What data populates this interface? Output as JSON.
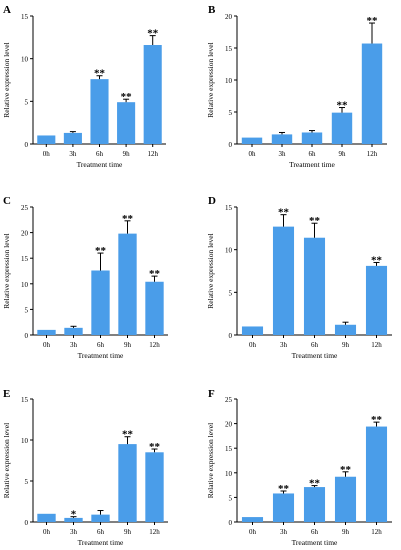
{
  "figure": {
    "bar_color": "#4a9de9",
    "axis_color": "#000000"
  },
  "chart_data": [
    {
      "type": "bar",
      "panel_label": "A",
      "categories": [
        "0h",
        "3h",
        "6h",
        "9h",
        "12h"
      ],
      "values": [
        1.0,
        1.3,
        7.6,
        4.9,
        11.6
      ],
      "errors": [
        0.0,
        0.15,
        0.4,
        0.35,
        1.1
      ],
      "significance": [
        "",
        "",
        "**",
        "**",
        "**"
      ],
      "xlabel": "Treatment time",
      "ylabel": "Relative expression level",
      "ylim": [
        0,
        15
      ],
      "yticks": [
        0,
        5,
        10,
        15
      ]
    },
    {
      "type": "bar",
      "panel_label": "B",
      "categories": [
        "0h",
        "3h",
        "6h",
        "9h",
        "12h"
      ],
      "values": [
        1.0,
        1.5,
        1.8,
        4.9,
        15.7
      ],
      "errors": [
        0.0,
        0.3,
        0.3,
        0.8,
        3.2
      ],
      "significance": [
        "",
        "",
        "",
        "**",
        "**"
      ],
      "xlabel": "Treatment time",
      "ylabel": "Relative expression level",
      "ylim": [
        0,
        20
      ],
      "yticks": [
        0,
        5,
        10,
        15,
        20
      ]
    },
    {
      "type": "bar",
      "panel_label": "C",
      "categories": [
        "0h",
        "3h",
        "6h",
        "9h",
        "12h"
      ],
      "values": [
        1.0,
        1.4,
        12.6,
        19.8,
        10.4
      ],
      "errors": [
        0.0,
        0.3,
        3.4,
        2.5,
        1.1
      ],
      "significance": [
        "",
        "",
        "**",
        "**",
        "**"
      ],
      "xlabel": "Treatment time",
      "ylabel": "Relative expression level",
      "ylim": [
        0,
        25
      ],
      "yticks": [
        0,
        5,
        10,
        15,
        20,
        25
      ]
    },
    {
      "type": "bar",
      "panel_label": "D",
      "categories": [
        "0h",
        "3h",
        "6h",
        "9h",
        "12h"
      ],
      "values": [
        1.0,
        12.7,
        11.4,
        1.2,
        8.1
      ],
      "errors": [
        0.0,
        1.4,
        1.7,
        0.3,
        0.4
      ],
      "significance": [
        "",
        "**",
        "**",
        "",
        "**"
      ],
      "xlabel": "Treatment time",
      "ylabel": "Relative expression level",
      "ylim": [
        0,
        15
      ],
      "yticks": [
        0,
        5,
        10,
        15
      ]
    },
    {
      "type": "bar",
      "panel_label": "E",
      "categories": [
        "0h",
        "3h",
        "6h",
        "9h",
        "12h"
      ],
      "values": [
        1.0,
        0.5,
        0.9,
        9.5,
        8.5
      ],
      "errors": [
        0.0,
        0.15,
        0.5,
        0.9,
        0.4
      ],
      "significance": [
        "",
        "*",
        "",
        "**",
        "**"
      ],
      "xlabel": "Treatment time",
      "ylabel": "Relative expression level",
      "ylim": [
        0,
        15
      ],
      "yticks": [
        0,
        5,
        10,
        15
      ]
    },
    {
      "type": "bar",
      "panel_label": "F",
      "categories": [
        "0h",
        "3h",
        "6h",
        "9h",
        "12h"
      ],
      "values": [
        1.0,
        5.8,
        7.1,
        9.2,
        19.4
      ],
      "errors": [
        0.0,
        0.5,
        0.3,
        1.0,
        0.9
      ],
      "significance": [
        "",
        "**",
        "**",
        "**",
        "**"
      ],
      "xlabel": "Treatment time",
      "ylabel": "Relative expression level",
      "ylim": [
        0,
        25
      ],
      "yticks": [
        0,
        5,
        10,
        15,
        20,
        25
      ]
    }
  ]
}
